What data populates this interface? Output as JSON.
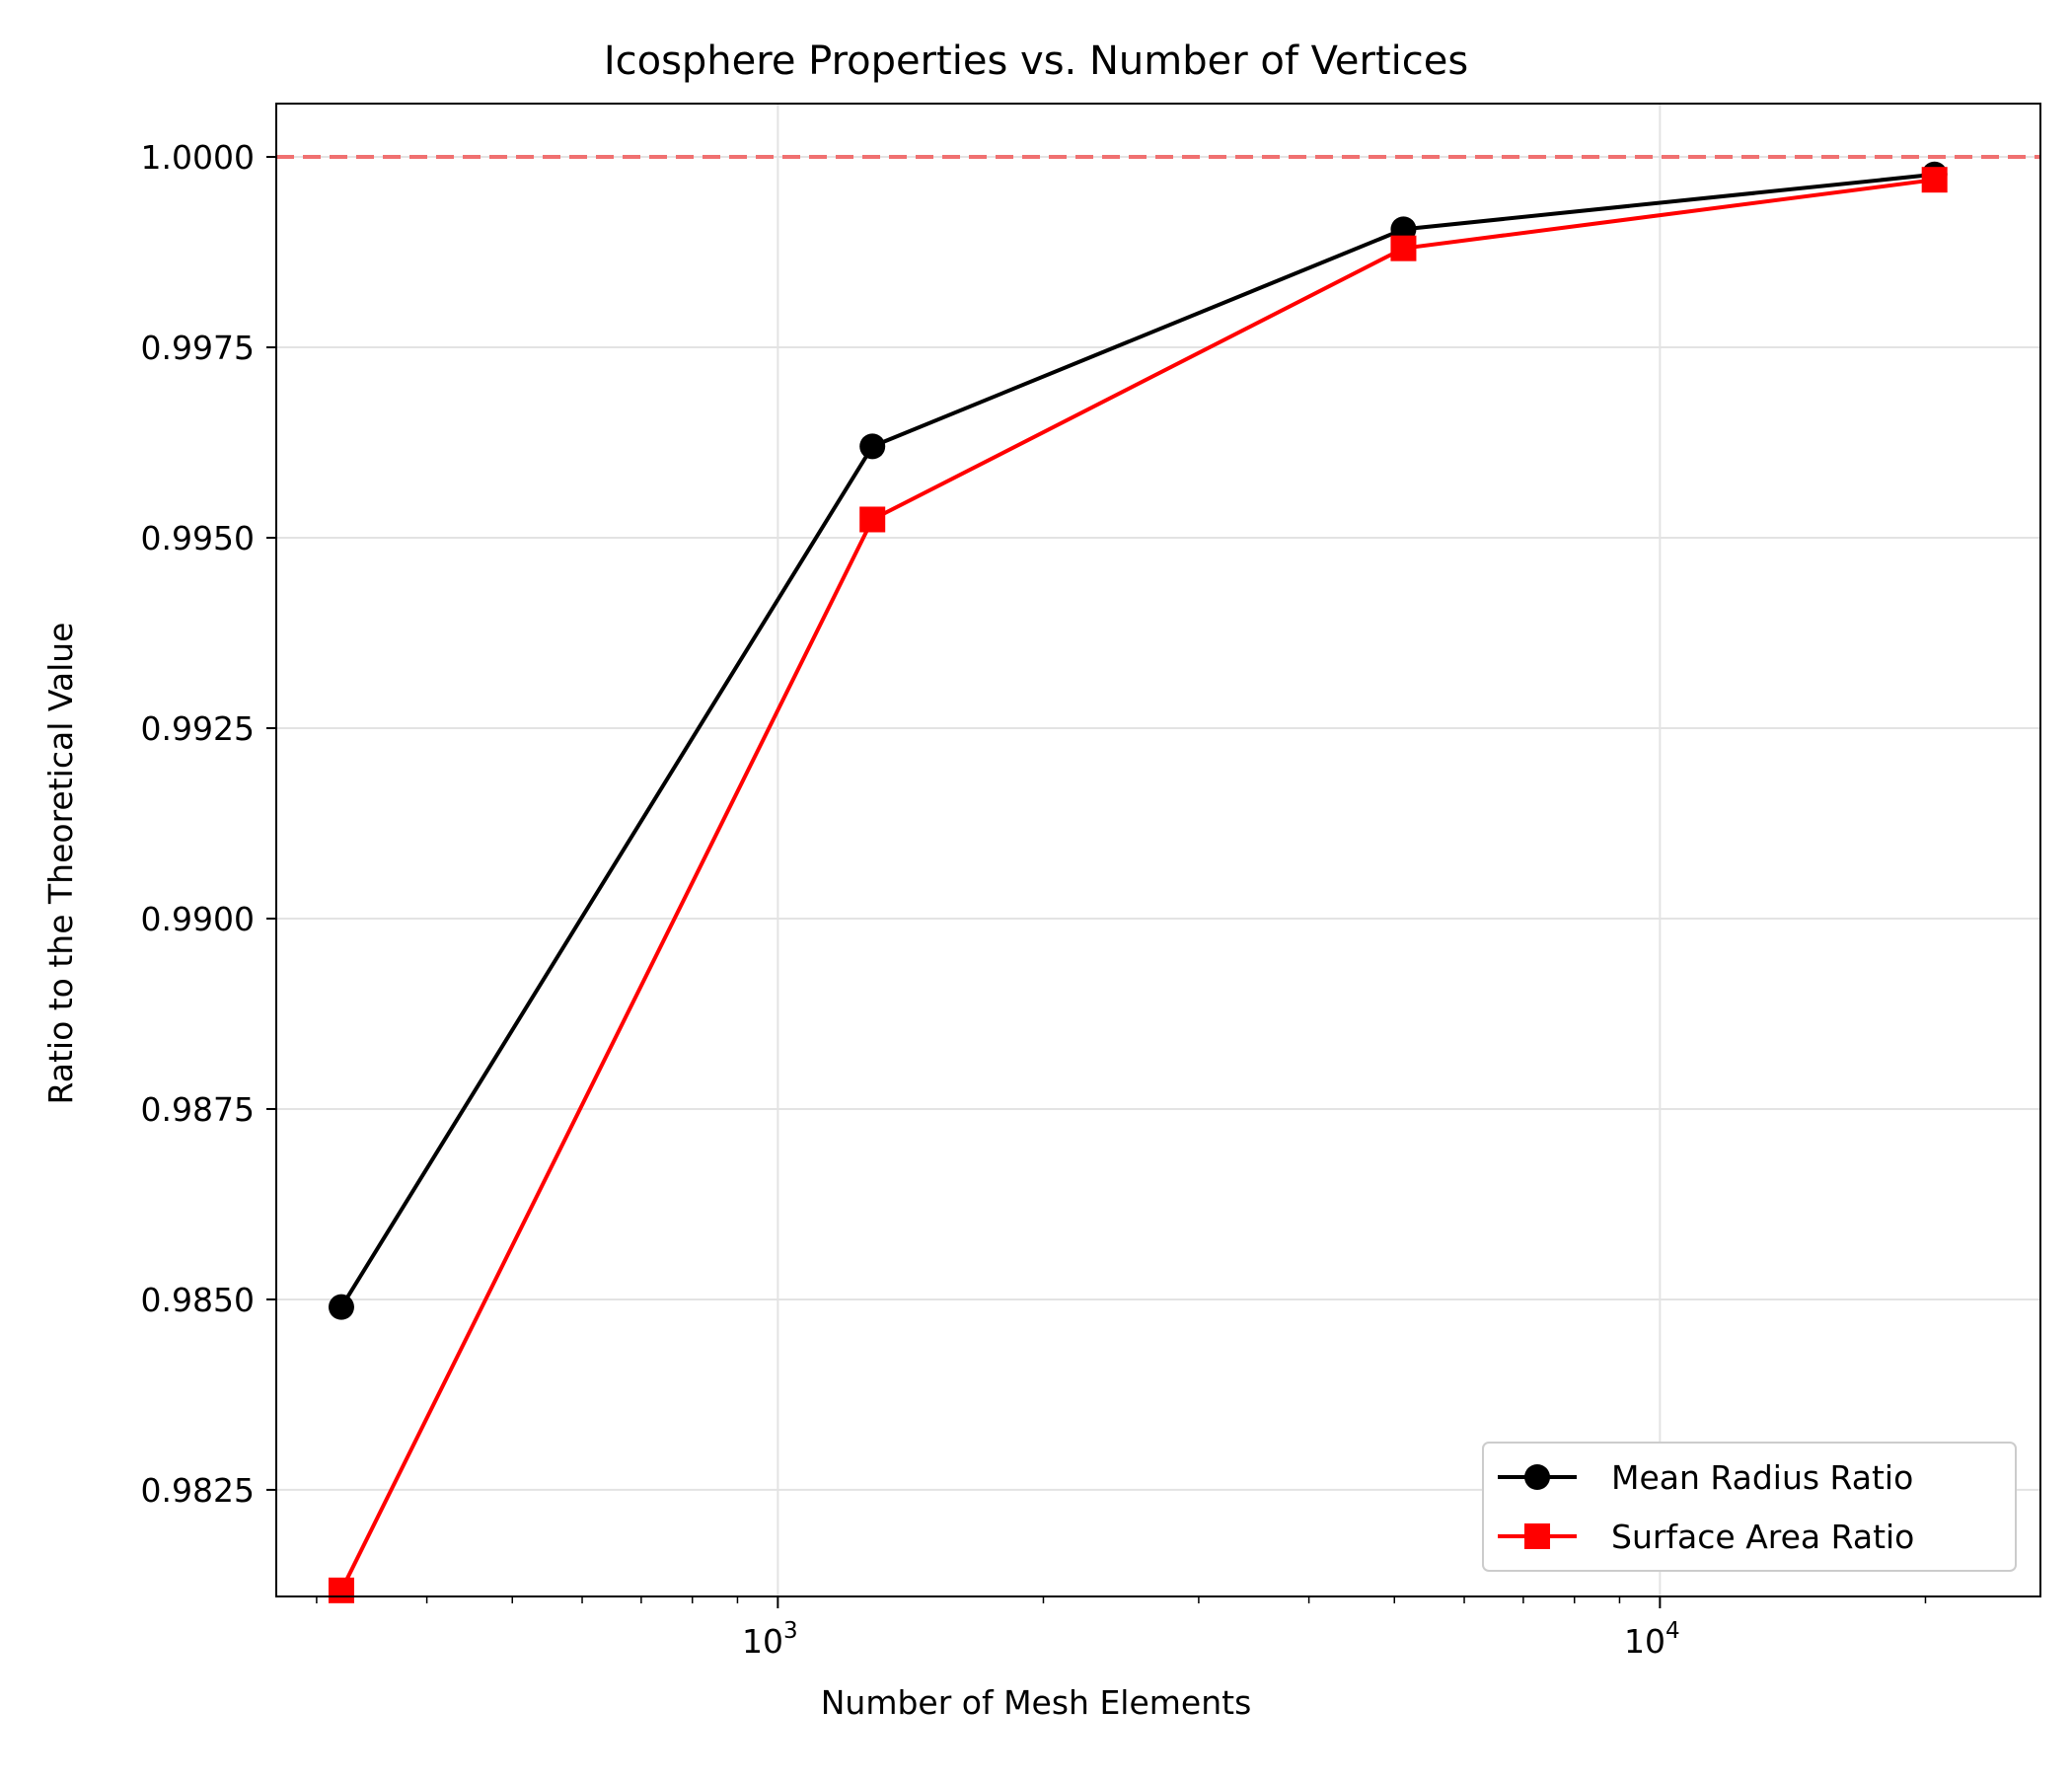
{
  "chart_data": {
    "type": "line",
    "title": "Icosphere Properties vs. Number of Vertices",
    "xlabel": "Number of Mesh Elements",
    "ylabel": "Ratio to the Theoretical Value",
    "x_scale": "log",
    "xlim": [
      270,
      27000
    ],
    "ylim": [
      0.9811,
      1.0007
    ],
    "x": [
      320,
      1280,
      5120,
      20480
    ],
    "x_ticks": [
      {
        "value": 1000,
        "base": "10",
        "exp": "3"
      },
      {
        "value": 10000,
        "base": "10",
        "exp": "4"
      }
    ],
    "y_ticks": [
      {
        "value": 0.9825,
        "label": "0.9825"
      },
      {
        "value": 0.985,
        "label": "0.9850"
      },
      {
        "value": 0.9875,
        "label": "0.9875"
      },
      {
        "value": 0.99,
        "label": "0.9900"
      },
      {
        "value": 0.9925,
        "label": "0.9925"
      },
      {
        "value": 0.995,
        "label": "0.9950"
      },
      {
        "value": 0.9975,
        "label": "0.9975"
      },
      {
        "value": 1.0,
        "label": "1.0000"
      }
    ],
    "series": [
      {
        "name": "Mean Radius Ratio",
        "color": "#000000",
        "marker": "circle",
        "values": [
          0.9849,
          0.9962,
          0.99905,
          0.99977
        ]
      },
      {
        "name": "Surface Area Ratio",
        "color": "#ff0000",
        "marker": "square",
        "values": [
          0.98118,
          0.99524,
          0.9988,
          0.9997
        ]
      }
    ],
    "reference_line": {
      "y": 1.0,
      "color": "#f07070",
      "style": "dashed"
    },
    "grid": true,
    "legend_position": "lower-right"
  }
}
